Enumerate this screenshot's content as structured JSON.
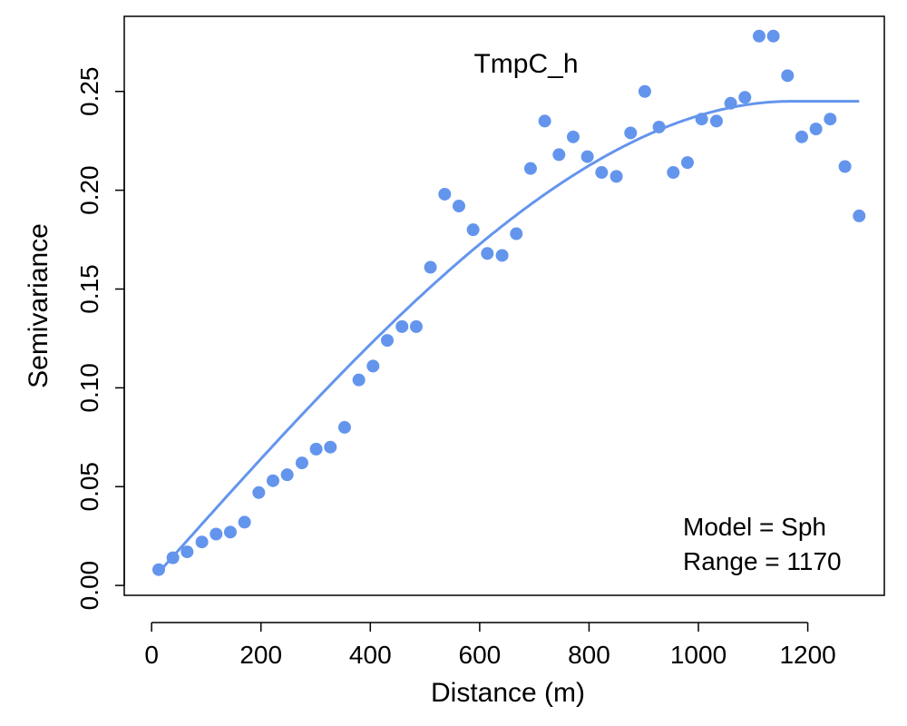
{
  "chart_data": {
    "type": "scatter",
    "title": "TmpC_h",
    "xlabel": "Distance (m)",
    "ylabel": "Semivariance",
    "xlim": [
      -50,
      1340
    ],
    "ylim": [
      -0.005,
      0.288
    ],
    "x_ticks": [
      0,
      200,
      400,
      600,
      800,
      1000,
      1200
    ],
    "x_tick_labels": [
      "0",
      "200",
      "400",
      "600",
      "800",
      "1000",
      "1200"
    ],
    "y_ticks": [
      0.0,
      0.05,
      0.1,
      0.15,
      0.2,
      0.25
    ],
    "y_tick_labels": [
      "0.00",
      "0.05",
      "0.10",
      "0.15",
      "0.20",
      "0.25"
    ],
    "grid": false,
    "colors": {
      "series": "#6495ed",
      "axes": "#000000",
      "background": "#ffffff"
    },
    "points": {
      "x": [
        13,
        39,
        65,
        92,
        118,
        144,
        170,
        196,
        222,
        248,
        275,
        301,
        327,
        353,
        379,
        405,
        431,
        458,
        484,
        510,
        536,
        562,
        588,
        614,
        641,
        667,
        693,
        719,
        745,
        771,
        797,
        823,
        850,
        876,
        902,
        928,
        954,
        980,
        1006,
        1033,
        1059,
        1085,
        1111,
        1137,
        1163,
        1189,
        1215,
        1241,
        1268,
        1294
      ],
      "y": [
        0.008,
        0.014,
        0.017,
        0.022,
        0.026,
        0.027,
        0.032,
        0.047,
        0.053,
        0.056,
        0.062,
        0.069,
        0.07,
        0.08,
        0.104,
        0.111,
        0.124,
        0.131,
        0.131,
        0.161,
        0.198,
        0.192,
        0.18,
        0.168,
        0.167,
        0.178,
        0.211,
        0.235,
        0.218,
        0.227,
        0.217,
        0.209,
        0.207,
        0.229,
        0.25,
        0.232,
        0.209,
        0.214,
        0.236,
        0.235,
        0.244,
        0.247,
        0.278,
        0.278,
        0.258,
        0.227,
        0.231,
        0.236,
        0.212,
        0.187
      ]
    },
    "model": {
      "type": "spherical",
      "nugget": 0.0025,
      "psill": 0.2425,
      "range": 1170,
      "x_from": 13,
      "x_to": 1294
    },
    "annotations": [
      "Model = Sph",
      "Range = 1170"
    ]
  }
}
